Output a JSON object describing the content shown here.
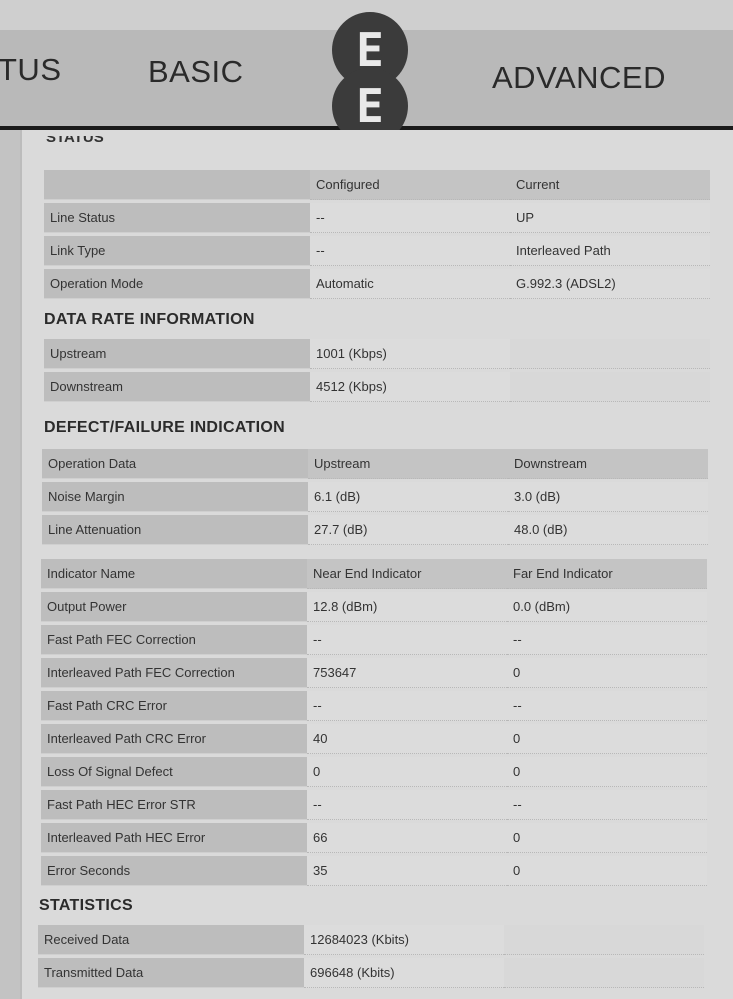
{
  "nav": {
    "status_partial": "TUS",
    "basic": "BASIC",
    "advanced": "ADVANCED",
    "logo": "EE"
  },
  "status": {
    "title_partial": "STATUS",
    "header": [
      "",
      "Configured",
      "Current"
    ],
    "rows": [
      [
        "Line Status",
        "--",
        "UP"
      ],
      [
        "Link Type",
        "--",
        "Interleaved Path"
      ],
      [
        "Operation Mode",
        "Automatic",
        "G.992.3 (ADSL2)"
      ]
    ]
  },
  "data_rate": {
    "title": "DATA RATE INFORMATION",
    "rows": [
      [
        "Upstream",
        "1001 (Kbps)"
      ],
      [
        "Downstream",
        "4512 (Kbps)"
      ]
    ]
  },
  "defect": {
    "title": "DEFECT/FAILURE INDICATION",
    "op_header": [
      "Operation Data",
      "Upstream",
      "Downstream"
    ],
    "op_rows": [
      [
        "Noise Margin",
        "6.1 (dB)",
        "3.0 (dB)"
      ],
      [
        "Line Attenuation",
        "27.7 (dB)",
        "48.0 (dB)"
      ]
    ],
    "ind_header": [
      "Indicator Name",
      "Near End Indicator",
      "Far End Indicator"
    ],
    "ind_rows": [
      [
        "Output Power",
        "12.8 (dBm)",
        "0.0 (dBm)"
      ],
      [
        "Fast Path FEC Correction",
        "--",
        "--"
      ],
      [
        "Interleaved Path FEC Correction",
        "753647",
        "0"
      ],
      [
        "Fast Path CRC Error",
        "--",
        "--"
      ],
      [
        "Interleaved Path CRC Error",
        "40",
        "0"
      ],
      [
        "Loss Of Signal Defect",
        "0",
        "0"
      ],
      [
        "Fast Path HEC Error STR",
        "--",
        "--"
      ],
      [
        "Interleaved Path HEC Error",
        "66",
        "0"
      ],
      [
        "Error Seconds",
        "35",
        "0"
      ]
    ]
  },
  "statistics": {
    "title": "STATISTICS",
    "rows": [
      [
        "Received Data",
        "12684023 (Kbits)"
      ],
      [
        "Transmitted Data",
        "696648 (Kbits)"
      ]
    ]
  }
}
